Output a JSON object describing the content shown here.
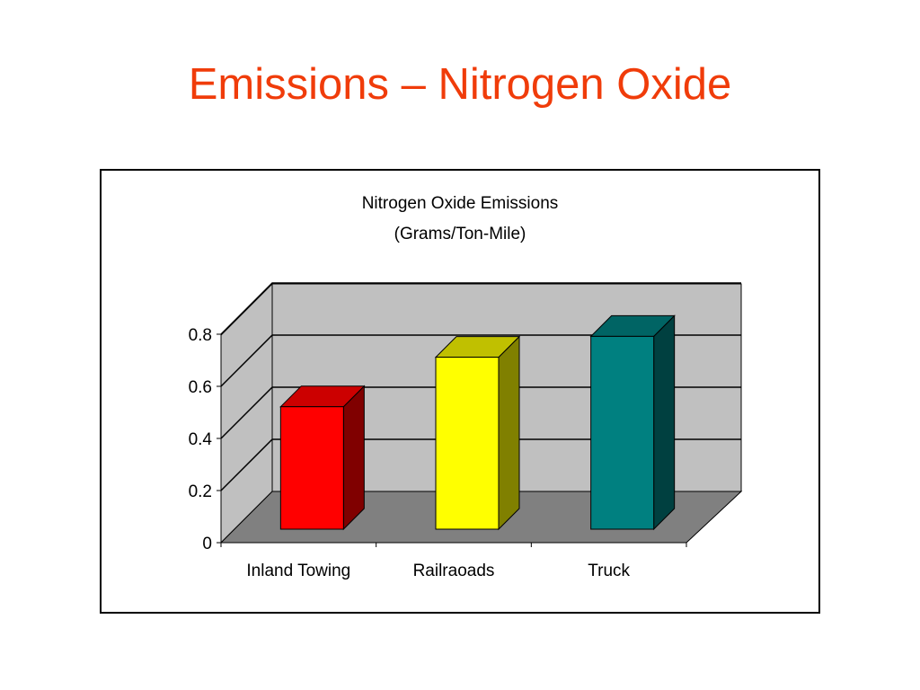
{
  "slide": {
    "title": "Emissions – Nitrogen Oxide"
  },
  "chart_data": {
    "type": "bar",
    "title": "Nitrogen Oxide Emissions",
    "subtitle": "(Grams/Ton-Mile)",
    "categories": [
      "Inland Towing",
      "Railraoads",
      "Truck"
    ],
    "values": [
      0.47,
      0.66,
      0.74
    ],
    "ylim": [
      0,
      0.8
    ],
    "yticks": [
      0,
      0.2,
      0.4,
      0.6,
      0.8
    ],
    "ytick_labels": [
      "0",
      "0.2",
      "0.4",
      "0.6",
      "0.8"
    ],
    "grid": true,
    "legend": "none",
    "bar_colors": [
      {
        "front": "#ff0000",
        "top": "#cc0000",
        "side": "#800000"
      },
      {
        "front": "#ffff00",
        "top": "#c0c000",
        "side": "#808000"
      },
      {
        "front": "#008080",
        "top": "#006464",
        "side": "#004040"
      }
    ],
    "wall_color": "#c0c0c0",
    "floor_color": "#808080"
  }
}
